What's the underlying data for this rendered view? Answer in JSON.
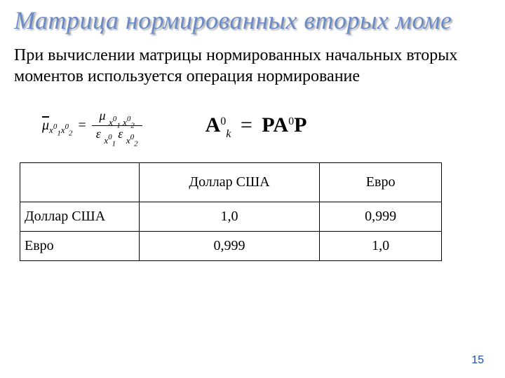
{
  "title": "Матрица нормированных вторых моме",
  "body": "При вычислении матрицы нормированных начальных вторых моментов используется операция нормирование",
  "formula_left": {
    "lhs_symbol": "μ",
    "lhs_sub1": "x",
    "lhs_sub1_idx": "1",
    "lhs_sub2": "x",
    "lhs_sub2_idx": "2",
    "sup_zero": "0",
    "num_symbol": "μ",
    "den_symbol_a": "ε",
    "den_symbol_b": "ε",
    "eq": "="
  },
  "formula_right": {
    "A": "A",
    "k": "k",
    "zero": "0",
    "eq": "=",
    "P": "P"
  },
  "table": {
    "columns": [
      "",
      "Доллар США",
      "Евро"
    ],
    "rows": [
      {
        "label": "Доллар США",
        "values": [
          "1,0",
          "0,999"
        ]
      },
      {
        "label": "Евро",
        "values": [
          "0,999",
          "1,0"
        ]
      }
    ],
    "col_widths": [
      "170px",
      "258px",
      "174px"
    ],
    "border_color": "#000000",
    "font_size": 20
  },
  "page_number": "15",
  "colors": {
    "title": "#6b8cc7",
    "text": "#000000",
    "page_number": "#1e4ea3",
    "background": "#ffffff"
  }
}
